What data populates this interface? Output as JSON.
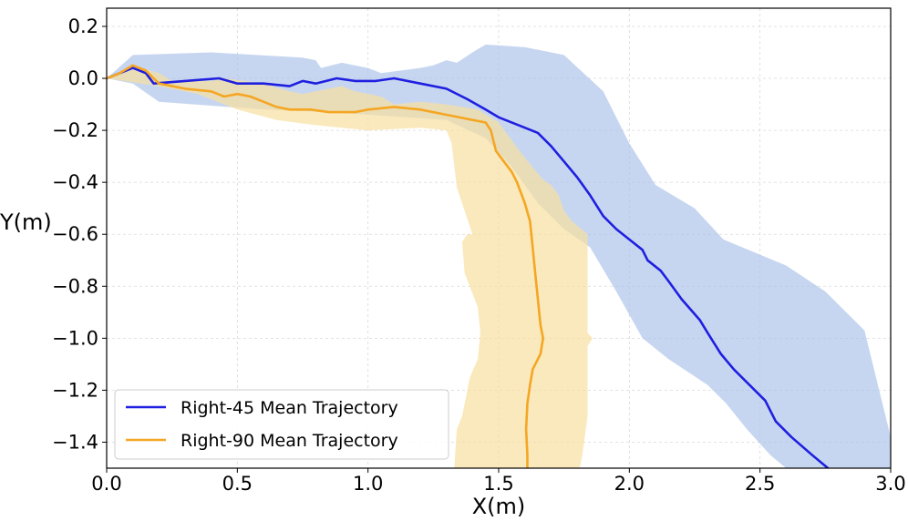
{
  "chart_data": {
    "type": "line",
    "title": "",
    "xlabel": "X(m)",
    "ylabel": "Y(m)",
    "xlim": [
      0.0,
      3.0
    ],
    "ylim": [
      -1.5,
      0.27
    ],
    "grid": true,
    "legend_position": "lower-left",
    "x_ticks": [
      0.0,
      0.5,
      1.0,
      1.5,
      2.0,
      2.5,
      3.0
    ],
    "x_tick_labels": [
      "0.0",
      "0.5",
      "1.0",
      "1.5",
      "2.0",
      "2.5",
      "3.0"
    ],
    "y_ticks": [
      0.2,
      0.0,
      -0.2,
      -0.4,
      -0.6,
      -0.8,
      -1.0,
      -1.2,
      -1.4
    ],
    "y_tick_labels": [
      "0.2",
      "0.0",
      "−0.2",
      "−0.4",
      "−0.6",
      "−0.8",
      "−1.0",
      "−1.2",
      "−1.4"
    ],
    "series": [
      {
        "name": "Right-45 Mean Trajectory",
        "color": "#1f1fe0",
        "band_color": "#a9c0e8",
        "points": [
          [
            0,
            0
          ],
          [
            0.05,
            0.02
          ],
          [
            0.1,
            0.04
          ],
          [
            0.15,
            0.02
          ],
          [
            0.18,
            -0.02
          ],
          [
            0.3,
            -0.01
          ],
          [
            0.43,
            0.0
          ],
          [
            0.5,
            -0.02
          ],
          [
            0.6,
            -0.02
          ],
          [
            0.7,
            -0.03
          ],
          [
            0.75,
            -0.01
          ],
          [
            0.8,
            -0.02
          ],
          [
            0.88,
            0.0
          ],
          [
            0.95,
            -0.01
          ],
          [
            1.03,
            -0.01
          ],
          [
            1.1,
            0.0
          ],
          [
            1.2,
            -0.02
          ],
          [
            1.3,
            -0.04
          ],
          [
            1.38,
            -0.08
          ],
          [
            1.45,
            -0.12
          ],
          [
            1.5,
            -0.15
          ],
          [
            1.6,
            -0.19
          ],
          [
            1.65,
            -0.21
          ],
          [
            1.7,
            -0.26
          ],
          [
            1.75,
            -0.32
          ],
          [
            1.8,
            -0.38
          ],
          [
            1.85,
            -0.45
          ],
          [
            1.9,
            -0.53
          ],
          [
            1.95,
            -0.58
          ],
          [
            2.0,
            -0.62
          ],
          [
            2.05,
            -0.66
          ],
          [
            2.07,
            -0.7
          ],
          [
            2.12,
            -0.74
          ],
          [
            2.15,
            -0.78
          ],
          [
            2.2,
            -0.85
          ],
          [
            2.27,
            -0.93
          ],
          [
            2.3,
            -0.98
          ],
          [
            2.35,
            -1.06
          ],
          [
            2.4,
            -1.12
          ],
          [
            2.45,
            -1.17
          ],
          [
            2.52,
            -1.24
          ],
          [
            2.56,
            -1.32
          ],
          [
            2.62,
            -1.38
          ],
          [
            2.7,
            -1.45
          ],
          [
            2.76,
            -1.5
          ]
        ],
        "band_upper": [
          [
            0,
            0
          ],
          [
            0.1,
            0.09
          ],
          [
            0.4,
            0.1
          ],
          [
            0.75,
            0.08
          ],
          [
            0.8,
            0.07
          ],
          [
            0.82,
            0.04
          ],
          [
            0.9,
            0.06
          ],
          [
            1.0,
            0.04
          ],
          [
            1.05,
            0.02
          ],
          [
            1.2,
            0.04
          ],
          [
            1.25,
            0.05
          ],
          [
            1.3,
            0.07
          ],
          [
            1.34,
            0.06
          ],
          [
            1.4,
            0.1
          ],
          [
            1.45,
            0.13
          ],
          [
            1.6,
            0.12
          ],
          [
            1.75,
            0.09
          ],
          [
            1.9,
            -0.05
          ],
          [
            2.0,
            -0.25
          ],
          [
            2.1,
            -0.41
          ],
          [
            2.25,
            -0.5
          ],
          [
            2.36,
            -0.62
          ],
          [
            2.6,
            -0.72
          ],
          [
            2.75,
            -0.82
          ],
          [
            2.9,
            -0.97
          ],
          [
            3.0,
            -1.38
          ],
          [
            3.02,
            -1.5
          ]
        ],
        "band_lower": [
          [
            0,
            0
          ],
          [
            0.1,
            -0.02
          ],
          [
            0.2,
            -0.09
          ],
          [
            0.6,
            -0.12
          ],
          [
            0.85,
            -0.13
          ],
          [
            1.3,
            -0.16
          ],
          [
            1.45,
            -0.23
          ],
          [
            1.55,
            -0.34
          ],
          [
            1.65,
            -0.48
          ],
          [
            1.75,
            -0.58
          ],
          [
            1.85,
            -0.65
          ],
          [
            1.95,
            -0.82
          ],
          [
            2.05,
            -1.0
          ],
          [
            2.15,
            -1.08
          ],
          [
            2.3,
            -1.18
          ],
          [
            2.37,
            -1.25
          ],
          [
            2.45,
            -1.35
          ],
          [
            2.54,
            -1.45
          ],
          [
            2.6,
            -1.5
          ]
        ]
      },
      {
        "name": "Right-90 Mean Trajectory",
        "color": "#f5a623",
        "band_color": "#f8dfa0",
        "points": [
          [
            0,
            0
          ],
          [
            0.05,
            0.02
          ],
          [
            0.1,
            0.05
          ],
          [
            0.15,
            0.03
          ],
          [
            0.2,
            -0.02
          ],
          [
            0.3,
            -0.04
          ],
          [
            0.4,
            -0.05
          ],
          [
            0.45,
            -0.07
          ],
          [
            0.5,
            -0.06
          ],
          [
            0.55,
            -0.07
          ],
          [
            0.6,
            -0.09
          ],
          [
            0.65,
            -0.11
          ],
          [
            0.7,
            -0.12
          ],
          [
            0.78,
            -0.12
          ],
          [
            0.85,
            -0.13
          ],
          [
            0.95,
            -0.13
          ],
          [
            1.0,
            -0.12
          ],
          [
            1.1,
            -0.11
          ],
          [
            1.2,
            -0.12
          ],
          [
            1.3,
            -0.14
          ],
          [
            1.4,
            -0.16
          ],
          [
            1.45,
            -0.17
          ],
          [
            1.47,
            -0.2
          ],
          [
            1.49,
            -0.28
          ],
          [
            1.52,
            -0.32
          ],
          [
            1.55,
            -0.36
          ],
          [
            1.57,
            -0.4
          ],
          [
            1.6,
            -0.48
          ],
          [
            1.62,
            -0.55
          ],
          [
            1.63,
            -0.65
          ],
          [
            1.64,
            -0.75
          ],
          [
            1.65,
            -0.85
          ],
          [
            1.66,
            -0.95
          ],
          [
            1.67,
            -1.0
          ],
          [
            1.66,
            -1.06
          ],
          [
            1.63,
            -1.12
          ],
          [
            1.62,
            -1.18
          ],
          [
            1.61,
            -1.25
          ],
          [
            1.605,
            -1.35
          ],
          [
            1.61,
            -1.45
          ],
          [
            1.61,
            -1.5
          ]
        ],
        "band_upper": [
          [
            0,
            0
          ],
          [
            0.1,
            0.05
          ],
          [
            0.2,
            0.02
          ],
          [
            0.25,
            -0.01
          ],
          [
            0.4,
            -0.01
          ],
          [
            0.45,
            0.0
          ],
          [
            0.6,
            -0.02
          ],
          [
            0.7,
            -0.05
          ],
          [
            0.75,
            -0.06
          ],
          [
            0.85,
            -0.04
          ],
          [
            0.9,
            -0.03
          ],
          [
            0.95,
            -0.05
          ],
          [
            1.05,
            -0.07
          ],
          [
            1.1,
            -0.1
          ],
          [
            1.2,
            -0.09
          ],
          [
            1.3,
            -0.1
          ],
          [
            1.42,
            -0.12
          ],
          [
            1.5,
            -0.17
          ],
          [
            1.58,
            -0.28
          ],
          [
            1.62,
            -0.33
          ],
          [
            1.67,
            -0.39
          ],
          [
            1.7,
            -0.41
          ],
          [
            1.73,
            -0.45
          ],
          [
            1.75,
            -0.51
          ],
          [
            1.78,
            -0.55
          ],
          [
            1.84,
            -0.6
          ],
          [
            1.84,
            -0.98
          ],
          [
            1.86,
            -1.0
          ],
          [
            1.84,
            -1.03
          ],
          [
            1.84,
            -1.3
          ],
          [
            1.82,
            -1.45
          ],
          [
            1.81,
            -1.5
          ]
        ],
        "band_lower": [
          [
            0,
            0
          ],
          [
            0.2,
            -0.03
          ],
          [
            0.35,
            -0.06
          ],
          [
            0.5,
            -0.12
          ],
          [
            0.65,
            -0.16
          ],
          [
            0.8,
            -0.18
          ],
          [
            1.0,
            -0.2
          ],
          [
            1.2,
            -0.19
          ],
          [
            1.3,
            -0.2
          ],
          [
            1.32,
            -0.25
          ],
          [
            1.34,
            -0.42
          ],
          [
            1.4,
            -0.6
          ],
          [
            1.38,
            -0.6
          ],
          [
            1.36,
            -0.63
          ],
          [
            1.37,
            -0.75
          ],
          [
            1.42,
            -0.88
          ],
          [
            1.43,
            -0.98
          ],
          [
            1.42,
            -1.08
          ],
          [
            1.39,
            -1.15
          ],
          [
            1.36,
            -1.3
          ],
          [
            1.34,
            -1.35
          ],
          [
            1.33,
            -1.5
          ]
        ]
      }
    ]
  }
}
